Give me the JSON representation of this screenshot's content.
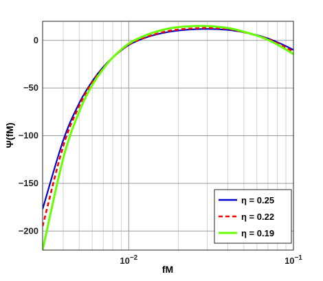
{
  "chart_data": {
    "type": "line",
    "xlabel": "fM",
    "ylabel": "Ψ(fM)",
    "xscale": "log",
    "xlim": [
      0.003,
      0.1
    ],
    "ylim": [
      -220,
      20
    ],
    "x_ticks": [
      {
        "value": 0.01,
        "base": "10",
        "exp": "−2"
      },
      {
        "value": 0.1,
        "base": "10",
        "exp": "−1"
      }
    ],
    "y_ticks": [
      0,
      -50,
      -100,
      -150,
      -200
    ],
    "y_tick_labels": [
      "0",
      "−50",
      "−100",
      "−150",
      "−200"
    ],
    "grid": true,
    "legend_position": "bottom-right",
    "series": [
      {
        "name": "η = 0.25",
        "color": "#0000cc",
        "dash": "solid",
        "x": [
          0.003,
          0.004,
          0.005,
          0.006,
          0.007,
          0.008,
          0.01,
          0.013,
          0.017,
          0.022,
          0.03,
          0.04,
          0.05,
          0.06,
          0.07,
          0.08,
          0.09,
          0.1
        ],
        "y": [
          -177,
          -105,
          -66,
          -43,
          -28,
          -18,
          -5,
          3.5,
          8.5,
          11,
          12,
          11,
          8.5,
          5.5,
          2,
          -2,
          -6,
          -10
        ]
      },
      {
        "name": "η = 0.22",
        "color": "#ff0000",
        "dash": "dashed",
        "x": [
          0.003,
          0.004,
          0.005,
          0.006,
          0.007,
          0.008,
          0.01,
          0.013,
          0.017,
          0.022,
          0.03,
          0.04,
          0.05,
          0.06,
          0.07,
          0.08,
          0.09,
          0.1
        ],
        "y": [
          -195,
          -111,
          -69,
          -44,
          -29,
          -18,
          -4.5,
          4,
          9.5,
          12,
          13,
          12,
          8.5,
          5,
          1.5,
          -3,
          -7.5,
          -12
        ]
      },
      {
        "name": "η = 0.19",
        "color": "#66ff00",
        "dash": "solid",
        "x": [
          0.003,
          0.004,
          0.005,
          0.006,
          0.007,
          0.008,
          0.01,
          0.013,
          0.017,
          0.022,
          0.03,
          0.04,
          0.05,
          0.06,
          0.07,
          0.08,
          0.09,
          0.1
        ],
        "y": [
          -220,
          -124,
          -75,
          -47,
          -30,
          -18,
          -3.5,
          6,
          12,
          14.5,
          15,
          13,
          9,
          5,
          0.5,
          -4.5,
          -9.5,
          -14.5
        ]
      }
    ]
  }
}
